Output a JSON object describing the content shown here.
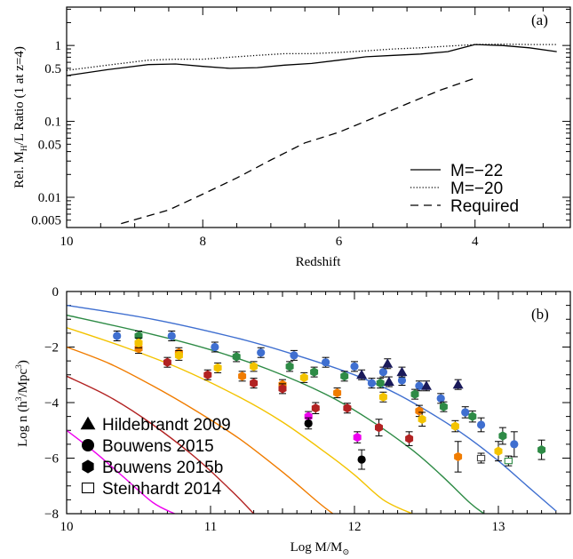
{
  "chart_data": [
    {
      "panel_label": "(a)",
      "type": "line",
      "xlabel": "Redshift",
      "ylabel": {
        "pre": "Rel. M",
        "sub": "H",
        "post": "/L Ratio (1 at z=4)"
      },
      "xlim": [
        10,
        2.6
      ],
      "ylim": [
        0.004,
        3.2
      ],
      "yscale": "log",
      "x_ticks": [
        10,
        8,
        6,
        4
      ],
      "x_tick_labels": [
        "10",
        "8",
        "6",
        "4"
      ],
      "y_ticks": [
        0.005,
        0.01,
        0.05,
        0.1,
        0.5,
        1
      ],
      "y_tick_labels": [
        "0.005",
        "0.01",
        "0.05",
        "0.1",
        "0.5",
        "1"
      ],
      "legend_position": "bottom-right",
      "series": [
        {
          "name": "M=−22",
          "style": "solid",
          "x": [
            10,
            9.4,
            8.8,
            8.4,
            8.0,
            7.6,
            7.2,
            6.8,
            6.4,
            6.0,
            5.6,
            5.2,
            4.8,
            4.4,
            4.0,
            3.6,
            3.2,
            2.8
          ],
          "y": [
            0.4,
            0.48,
            0.56,
            0.57,
            0.53,
            0.5,
            0.51,
            0.55,
            0.58,
            0.64,
            0.71,
            0.74,
            0.77,
            0.83,
            1.03,
            1.0,
            0.93,
            0.83
          ]
        },
        {
          "name": "M=−20",
          "style": "dotted",
          "x": [
            10,
            9.4,
            8.8,
            8.4,
            8.0,
            7.6,
            7.2,
            6.8,
            6.4,
            6.0,
            5.6,
            5.2,
            4.8,
            4.4,
            4.0,
            3.6,
            3.2,
            2.8
          ],
          "y": [
            0.47,
            0.55,
            0.64,
            0.66,
            0.66,
            0.7,
            0.74,
            0.78,
            0.78,
            0.81,
            0.85,
            0.9,
            0.93,
            0.98,
            1.03,
            1.04,
            1.03,
            1.03
          ]
        },
        {
          "name": "Required",
          "style": "dashed",
          "x": [
            9.2,
            8.5,
            8.0,
            7.5,
            7.0,
            6.5,
            6.0,
            5.5,
            5.0,
            4.5,
            4.0
          ],
          "y": [
            0.0045,
            0.0068,
            0.011,
            0.018,
            0.031,
            0.052,
            0.072,
            0.11,
            0.17,
            0.26,
            0.37
          ]
        }
      ]
    },
    {
      "panel_label": "(b)",
      "type": "scatter",
      "xlabel": {
        "pre": "Log M/M",
        "sub": "⊙"
      },
      "ylabel": {
        "pre": "Log n (h",
        "sup1": "3",
        "mid": "/Mpc",
        "sup2": "3",
        "post": ")"
      },
      "xlim": [
        10,
        13.5
      ],
      "ylim": [
        -8,
        0
      ],
      "x_ticks": [
        10,
        11,
        12,
        13
      ],
      "x_tick_labels": [
        "10",
        "11",
        "12",
        "13"
      ],
      "y_ticks": [
        0,
        -2,
        -4,
        -6,
        -8
      ],
      "y_tick_labels": [
        "0",
        "−2",
        "−4",
        "−6",
        "−8"
      ],
      "legend_position": "bottom-left",
      "legend": [
        {
          "marker": "triangle",
          "label": "Hildebrandt 2009"
        },
        {
          "marker": "circle",
          "label": "Bouwens 2015"
        },
        {
          "marker": "hexagon",
          "label": "Bouwens 2015b"
        },
        {
          "marker": "square-open",
          "label": "Steinhardt 2014"
        }
      ],
      "curves": [
        {
          "color": "#3f6fd0",
          "x": [
            10,
            10.6,
            11.2,
            11.6,
            12.0,
            12.3,
            12.6,
            12.8,
            13.0,
            13.2,
            13.4
          ],
          "y": [
            -0.5,
            -1.0,
            -1.7,
            -2.3,
            -3.0,
            -3.7,
            -4.6,
            -5.3,
            -6.1,
            -7.0,
            -7.9
          ]
        },
        {
          "color": "#2e8b46",
          "x": [
            10,
            10.6,
            11.0,
            11.4,
            11.8,
            12.1,
            12.4,
            12.6,
            12.8,
            12.9
          ],
          "y": [
            -0.85,
            -1.55,
            -2.1,
            -2.8,
            -3.7,
            -4.6,
            -5.7,
            -6.6,
            -7.6,
            -8.0
          ]
        },
        {
          "color": "#f3c300",
          "x": [
            10,
            10.4,
            10.8,
            11.2,
            11.5,
            11.8,
            12.0,
            12.2,
            12.4
          ],
          "y": [
            -1.3,
            -2.0,
            -2.8,
            -3.8,
            -4.7,
            -5.8,
            -6.6,
            -7.5,
            -8.0
          ]
        },
        {
          "color": "#f07c00",
          "x": [
            10,
            10.3,
            10.6,
            10.9,
            11.2,
            11.5,
            11.75,
            11.85
          ],
          "y": [
            -2.0,
            -2.6,
            -3.4,
            -4.3,
            -5.3,
            -6.5,
            -7.6,
            -8.0
          ]
        },
        {
          "color": "#b22222",
          "x": [
            10,
            10.3,
            10.6,
            10.9,
            11.15,
            11.3
          ],
          "y": [
            -3.05,
            -3.8,
            -4.8,
            -6.0,
            -7.2,
            -8.0
          ]
        },
        {
          "color": "#ee00ee",
          "x": [
            10,
            10.2,
            10.4,
            10.6,
            10.75
          ],
          "y": [
            -5.0,
            -5.8,
            -6.7,
            -7.6,
            -8.0
          ]
        }
      ],
      "points": [
        {
          "shape": "circle",
          "color": "#3f6fd0",
          "x": 10.35,
          "y": -1.6,
          "err": 0.1
        },
        {
          "shape": "circle",
          "color": "#3f6fd0",
          "x": 10.73,
          "y": -1.6,
          "err": 0.1
        },
        {
          "shape": "circle",
          "color": "#3f6fd0",
          "x": 11.03,
          "y": -2.0,
          "err": 0.1
        },
        {
          "shape": "circle",
          "color": "#3f6fd0",
          "x": 11.35,
          "y": -2.2,
          "err": 0.1
        },
        {
          "shape": "circle",
          "color": "#3f6fd0",
          "x": 11.58,
          "y": -2.3,
          "err": 0.1
        },
        {
          "shape": "circle",
          "color": "#3f6fd0",
          "x": 11.8,
          "y": -2.55,
          "err": 0.1
        },
        {
          "shape": "circle",
          "color": "#3f6fd0",
          "x": 12.0,
          "y": -2.7,
          "err": 0.1
        },
        {
          "shape": "circle",
          "color": "#3f6fd0",
          "x": 12.2,
          "y": -2.9,
          "err": 0.1
        },
        {
          "shape": "circle",
          "color": "#3f6fd0",
          "x": 12.33,
          "y": -3.2,
          "err": 0.1
        },
        {
          "shape": "circle",
          "color": "#3f6fd0",
          "x": 12.12,
          "y": -3.3,
          "err": 0.1
        },
        {
          "shape": "circle",
          "color": "#3f6fd0",
          "x": 12.45,
          "y": -3.4,
          "err": 0.1
        },
        {
          "shape": "circle",
          "color": "#3f6fd0",
          "x": 12.6,
          "y": -3.85,
          "err": 0.1
        },
        {
          "shape": "circle",
          "color": "#3f6fd0",
          "x": 12.77,
          "y": -4.35,
          "err": 0.2
        },
        {
          "shape": "circle",
          "color": "#3f6fd0",
          "x": 12.88,
          "y": -4.8,
          "err": 0.25
        },
        {
          "shape": "circle",
          "color": "#3f6fd0",
          "x": 13.11,
          "y": -5.5,
          "err": 0.45
        },
        {
          "shape": "hexagon",
          "color": "#2e8b46",
          "x": 10.5,
          "y": -1.6,
          "err": 0.1
        },
        {
          "shape": "hexagon",
          "color": "#2e8b46",
          "x": 11.18,
          "y": -2.35,
          "err": 0.1
        },
        {
          "shape": "hexagon",
          "color": "#2e8b46",
          "x": 11.55,
          "y": -2.7,
          "err": 0.1
        },
        {
          "shape": "hexagon",
          "color": "#2e8b46",
          "x": 11.72,
          "y": -2.9,
          "err": 0.1
        },
        {
          "shape": "hexagon",
          "color": "#2e8b46",
          "x": 11.93,
          "y": -3.05,
          "err": 0.1
        },
        {
          "shape": "hexagon",
          "color": "#2e8b46",
          "x": 12.18,
          "y": -3.3,
          "err": 0.1
        },
        {
          "shape": "hexagon",
          "color": "#2e8b46",
          "x": 12.42,
          "y": -3.7,
          "err": 0.1
        },
        {
          "shape": "hexagon",
          "color": "#2e8b46",
          "x": 12.62,
          "y": -4.15,
          "err": 0.15
        },
        {
          "shape": "hexagon",
          "color": "#2e8b46",
          "x": 12.82,
          "y": -4.5,
          "err": 0.2
        },
        {
          "shape": "hexagon",
          "color": "#2e8b46",
          "x": 13.03,
          "y": -5.2,
          "err": 0.3
        },
        {
          "shape": "hexagon",
          "color": "#2e8b46",
          "x": 13.3,
          "y": -5.7,
          "err": 0.35
        },
        {
          "shape": "hexagon",
          "color": "#f07c00",
          "x": 10.5,
          "y": -2.05,
          "err": 0.1
        },
        {
          "shape": "hexagon",
          "color": "#f07c00",
          "x": 10.78,
          "y": -2.2,
          "err": 0.1
        },
        {
          "shape": "hexagon",
          "color": "#f07c00",
          "x": 11.22,
          "y": -3.05,
          "err": 0.1
        },
        {
          "shape": "hexagon",
          "color": "#f07c00",
          "x": 11.5,
          "y": -3.35,
          "err": 0.15
        },
        {
          "shape": "hexagon",
          "color": "#f07c00",
          "x": 11.88,
          "y": -3.65,
          "err": 0.15
        },
        {
          "shape": "hexagon",
          "color": "#f07c00",
          "x": 12.45,
          "y": -4.3,
          "err": 0.2
        },
        {
          "shape": "hexagon",
          "color": "#f07c00",
          "x": 12.72,
          "y": -5.95,
          "err": 0.55
        },
        {
          "shape": "hexagon",
          "color": "#f3c300",
          "x": 10.5,
          "y": -1.85,
          "err": 0.1
        },
        {
          "shape": "hexagon",
          "color": "#f3c300",
          "x": 10.78,
          "y": -2.3,
          "err": 0.1
        },
        {
          "shape": "hexagon",
          "color": "#f3c300",
          "x": 11.05,
          "y": -2.75,
          "err": 0.1
        },
        {
          "shape": "hexagon",
          "color": "#f3c300",
          "x": 11.3,
          "y": -2.7,
          "err": 0.1
        },
        {
          "shape": "hexagon",
          "color": "#f3c300",
          "x": 11.65,
          "y": -3.1,
          "err": 0.1
        },
        {
          "shape": "hexagon",
          "color": "#f3c300",
          "x": 12.2,
          "y": -3.8,
          "err": 0.15
        },
        {
          "shape": "hexagon",
          "color": "#f3c300",
          "x": 12.47,
          "y": -4.6,
          "err": 0.25
        },
        {
          "shape": "hexagon",
          "color": "#f3c300",
          "x": 12.7,
          "y": -4.85,
          "err": 0.2
        },
        {
          "shape": "hexagon",
          "color": "#f3c300",
          "x": 13.0,
          "y": -5.75,
          "err": 0.35
        },
        {
          "shape": "hexagon",
          "color": "#b22222",
          "x": 10.7,
          "y": -2.55,
          "err": 0.1
        },
        {
          "shape": "hexagon",
          "color": "#b22222",
          "x": 10.98,
          "y": -3.0,
          "err": 0.1
        },
        {
          "shape": "hexagon",
          "color": "#b22222",
          "x": 11.3,
          "y": -3.3,
          "err": 0.15
        },
        {
          "shape": "hexagon",
          "color": "#b22222",
          "x": 11.5,
          "y": -3.5,
          "err": 0.15
        },
        {
          "shape": "hexagon",
          "color": "#b22222",
          "x": 11.73,
          "y": -4.2,
          "err": 0.2
        },
        {
          "shape": "hexagon",
          "color": "#b22222",
          "x": 11.95,
          "y": -4.2,
          "err": 0.15
        },
        {
          "shape": "hexagon",
          "color": "#b22222",
          "x": 12.17,
          "y": -4.9,
          "err": 0.3
        },
        {
          "shape": "hexagon",
          "color": "#b22222",
          "x": 12.38,
          "y": -5.3,
          "err": 0.25
        },
        {
          "shape": "hexagon",
          "color": "#ee00ee",
          "x": 11.68,
          "y": -4.5,
          "err": 0.15
        },
        {
          "shape": "hexagon",
          "color": "#ee00ee",
          "x": 12.02,
          "y": -5.25,
          "err": 0.2
        },
        {
          "shape": "circle",
          "color": "#000000",
          "x": 11.68,
          "y": -4.75,
          "err": 0.2
        },
        {
          "shape": "circle",
          "color": "#000000",
          "x": 12.05,
          "y": -6.05,
          "err": 0.35
        },
        {
          "shape": "triangle",
          "color": "#1a1a5a",
          "x": 12.05,
          "y": -3.0,
          "err": 0.1
        },
        {
          "shape": "triangle",
          "color": "#1a1a5a",
          "x": 12.23,
          "y": -2.6,
          "err": 0.1
        },
        {
          "shape": "triangle",
          "color": "#1a1a5a",
          "x": 12.24,
          "y": -3.25,
          "err": 0.1
        },
        {
          "shape": "triangle",
          "color": "#1a1a5a",
          "x": 12.33,
          "y": -2.9,
          "err": 0.1
        },
        {
          "shape": "triangle",
          "color": "#1a1a5a",
          "x": 12.5,
          "y": -3.4,
          "err": 0.1
        },
        {
          "shape": "triangle",
          "color": "#1a1a5a",
          "x": 12.72,
          "y": -3.35,
          "err": 0.1
        },
        {
          "shape": "square-open",
          "color": "#444444",
          "x": 12.88,
          "y": -6.0,
          "err": 0.1
        },
        {
          "shape": "square-open",
          "color": "#2e8b46",
          "x": 13.07,
          "y": -6.1,
          "err": 0.1
        }
      ]
    }
  ]
}
